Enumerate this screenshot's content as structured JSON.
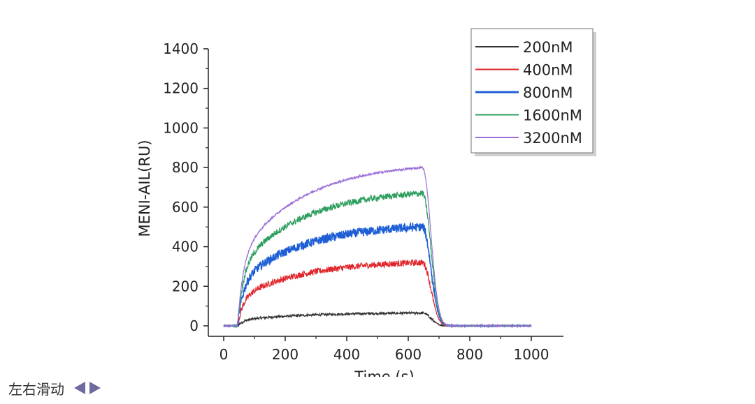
{
  "chart_data": {
    "type": "line",
    "xlabel": "Time (s)",
    "ylabel": "MENI-AIL(RU)",
    "xlim": [
      0,
      1000
    ],
    "ylim": [
      0,
      1400
    ],
    "x_ticks": [
      0,
      200,
      400,
      600,
      800,
      1000
    ],
    "y_ticks": [
      0,
      200,
      400,
      600,
      800,
      1000,
      1200,
      1400
    ],
    "grid": false,
    "legend_position": "top-right",
    "association_start": 45,
    "dissociation_start": 645,
    "series": [
      {
        "name": "200nM",
        "color": "#333333",
        "plateau": 65,
        "noise": 6
      },
      {
        "name": "400nM",
        "color": "#e0262c",
        "plateau": 320,
        "noise": 16
      },
      {
        "name": "800nM",
        "color": "#1f5fd6",
        "plateau": 500,
        "noise": 22
      },
      {
        "name": "1600nM",
        "color": "#2e9e5e",
        "plateau": 670,
        "noise": 16
      },
      {
        "name": "3200nM",
        "color": "#9a6fd8",
        "plateau": 800,
        "noise": 5
      }
    ]
  },
  "footer": {
    "swipe_hint": "左右滑动",
    "left_arrow_icon": "triangle-left-icon",
    "right_arrow_icon": "triangle-right-icon",
    "arrow_color": "#6c6a9e"
  }
}
